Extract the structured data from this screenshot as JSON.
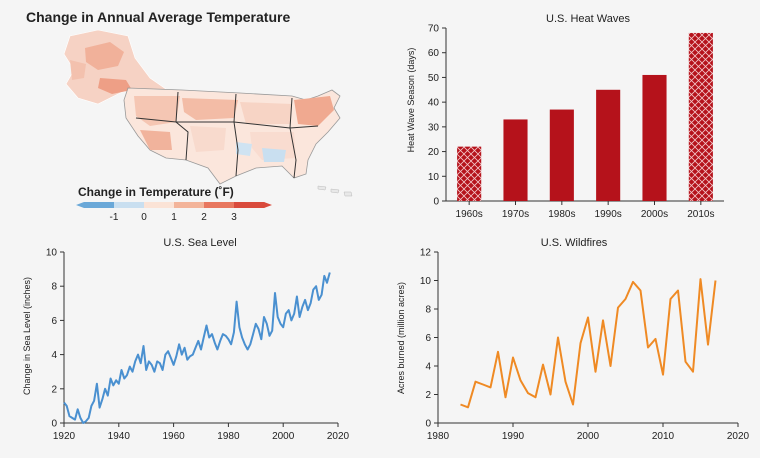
{
  "map_panel": {
    "title": "Change in Annual Average Temperature",
    "legend_title": "Change in Temperature (˚F)",
    "legend_ticks": [
      "-1",
      "0",
      "1",
      "2",
      "3"
    ],
    "legend_colors": [
      "#6aa8d8",
      "#c9dff0",
      "#fbe3d6",
      "#f3b49a",
      "#e8775f",
      "#d94a3c"
    ]
  },
  "chart_data": [
    {
      "type": "bar",
      "title": "U.S. Heat Waves",
      "xlabel": "",
      "ylabel": "Heat Wave Season (days)",
      "categories": [
        "1960s",
        "1970s",
        "1980s",
        "1990s",
        "2000s",
        "2010s"
      ],
      "values": [
        22,
        33,
        37,
        45,
        51,
        68
      ],
      "hatched": [
        true,
        false,
        false,
        false,
        false,
        true
      ],
      "ylim": [
        0,
        70
      ],
      "yticks": [
        0,
        10,
        20,
        30,
        40,
        50,
        60,
        70
      ],
      "color": "#b5121b",
      "grid": false
    },
    {
      "type": "line",
      "title": "U.S. Sea Level",
      "xlabel": "",
      "ylabel": "Change in Sea Level (inches)",
      "xlim": [
        1920,
        2020
      ],
      "ylim": [
        0,
        10
      ],
      "xticks": [
        1920,
        1940,
        1960,
        1980,
        2000,
        2020
      ],
      "yticks": [
        0,
        2,
        4,
        6,
        8,
        10
      ],
      "color": "#4a90d0",
      "grid": false,
      "series": [
        {
          "x": [
            1920,
            1921,
            1922,
            1923,
            1924,
            1925,
            1926,
            1927,
            1928,
            1929,
            1930,
            1931,
            1932,
            1933,
            1934,
            1935,
            1936,
            1937,
            1938,
            1939,
            1940,
            1941,
            1942,
            1943,
            1944,
            1945,
            1946,
            1947,
            1948,
            1949,
            1950,
            1951,
            1952,
            1953,
            1954,
            1955,
            1956,
            1957,
            1958,
            1959,
            1960,
            1961,
            1962,
            1963,
            1964,
            1965,
            1966,
            1967,
            1968,
            1969,
            1970,
            1971,
            1972,
            1973,
            1974,
            1975,
            1976,
            1977,
            1978,
            1979,
            1980,
            1981,
            1982,
            1983,
            1984,
            1985,
            1986,
            1987,
            1988,
            1989,
            1990,
            1991,
            1992,
            1993,
            1994,
            1995,
            1996,
            1997,
            1998,
            1999,
            2000,
            2001,
            2002,
            2003,
            2004,
            2005,
            2006,
            2007,
            2008,
            2009,
            2010,
            2011,
            2012,
            2013,
            2014,
            2015,
            2016,
            2017
          ],
          "y": [
            1.2,
            1.0,
            0.4,
            0.3,
            0.2,
            0.8,
            0.3,
            0.0,
            0.1,
            0.3,
            1.0,
            1.3,
            2.3,
            0.9,
            1.4,
            2.0,
            1.6,
            2.6,
            2.2,
            2.5,
            2.3,
            3.1,
            2.6,
            2.8,
            3.3,
            3.0,
            3.6,
            4.0,
            3.5,
            4.5,
            3.1,
            3.6,
            3.4,
            3.0,
            3.6,
            3.5,
            3.1,
            4.0,
            4.2,
            3.8,
            3.4,
            3.9,
            4.6,
            4.0,
            4.4,
            3.7,
            3.9,
            4.0,
            4.4,
            4.8,
            4.3,
            5.0,
            5.7,
            5.0,
            5.2,
            4.7,
            4.3,
            4.8,
            5.2,
            5.1,
            4.9,
            4.6,
            5.3,
            7.1,
            5.6,
            5.0,
            4.6,
            4.3,
            4.6,
            5.2,
            5.8,
            5.5,
            4.9,
            6.2,
            5.8,
            5.1,
            5.4,
            7.6,
            6.2,
            5.8,
            5.6,
            6.4,
            6.6,
            6.0,
            6.4,
            7.4,
            6.2,
            6.8,
            7.2,
            6.6,
            7.0,
            7.8,
            8.0,
            7.2,
            7.5,
            8.6,
            8.2,
            8.8
          ]
        }
      ]
    },
    {
      "type": "line",
      "title": "U.S. Wildfires",
      "xlabel": "",
      "ylabel": "Acres burned (million acres)",
      "xlim": [
        1980,
        2020
      ],
      "ylim": [
        0,
        12
      ],
      "xticks": [
        1980,
        1990,
        2000,
        2010,
        2020
      ],
      "yticks": [
        0,
        2,
        4,
        6,
        8,
        10,
        12
      ],
      "color": "#ef8a24",
      "grid": false,
      "series": [
        {
          "x": [
            1983,
            1984,
            1985,
            1986,
            1987,
            1988,
            1989,
            1990,
            1991,
            1992,
            1993,
            1994,
            1995,
            1996,
            1997,
            1998,
            1999,
            2000,
            2001,
            2002,
            2003,
            2004,
            2005,
            2006,
            2007,
            2008,
            2009,
            2010,
            2011,
            2012,
            2013,
            2014,
            2015,
            2016,
            2017
          ],
          "y": [
            1.3,
            1.1,
            2.9,
            2.7,
            2.5,
            5.0,
            1.8,
            4.6,
            3.0,
            2.1,
            1.8,
            4.1,
            2.0,
            6.0,
            2.9,
            1.3,
            5.6,
            7.4,
            3.6,
            7.2,
            4.0,
            8.1,
            8.7,
            9.9,
            9.3,
            5.3,
            5.9,
            3.4,
            8.7,
            9.3,
            4.3,
            3.6,
            10.1,
            5.5,
            10.0
          ]
        }
      ]
    }
  ]
}
